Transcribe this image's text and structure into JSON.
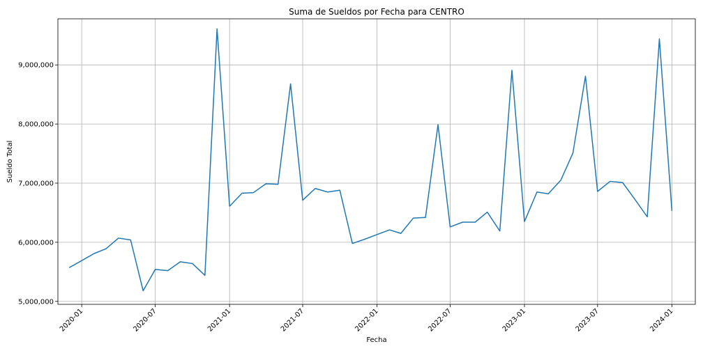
{
  "chart_data": {
    "type": "line",
    "title": "Suma de Sueldos por Fecha para CENTRO",
    "xlabel": "Fecha",
    "ylabel": "Sueldo Total",
    "ylim": [
      4950000,
      9780000
    ],
    "xlim": [
      "2019-11-03",
      "2024-02-28"
    ],
    "grid": true,
    "x_ticks": [
      "2020-01",
      "2020-07",
      "2021-01",
      "2021-07",
      "2022-01",
      "2022-07",
      "2023-01",
      "2023-07",
      "2024-01"
    ],
    "y_ticks": [
      "5,000,000",
      "6,000,000",
      "7,000,000",
      "8,000,000",
      "9,000,000"
    ],
    "y_tick_values": [
      5000000,
      6000000,
      7000000,
      8000000,
      9000000
    ],
    "series": [
      {
        "color": "#1f77b4",
        "x": [
          "2019-12-01",
          "2020-01-01",
          "2020-02-01",
          "2020-03-01",
          "2020-04-01",
          "2020-05-01",
          "2020-06-01",
          "2020-07-01",
          "2020-08-01",
          "2020-09-01",
          "2020-10-01",
          "2020-11-01",
          "2020-12-01",
          "2021-01-01",
          "2021-02-01",
          "2021-03-01",
          "2021-04-01",
          "2021-05-01",
          "2021-06-01",
          "2021-07-01",
          "2021-08-01",
          "2021-09-01",
          "2021-10-01",
          "2021-11-01",
          "2021-12-01",
          "2022-01-01",
          "2022-02-01",
          "2022-03-01",
          "2022-04-01",
          "2022-05-01",
          "2022-06-01",
          "2022-07-01",
          "2022-08-01",
          "2022-09-01",
          "2022-10-01",
          "2022-11-01",
          "2022-12-01",
          "2023-01-01",
          "2023-02-01",
          "2023-03-01",
          "2023-04-01",
          "2023-05-01",
          "2023-06-01",
          "2023-07-01",
          "2023-08-01",
          "2023-09-01",
          "2023-10-01",
          "2023-11-01",
          "2023-12-01",
          "2024-01-01"
        ],
        "y": [
          5570000,
          5690000,
          5810000,
          5890000,
          6070000,
          6040000,
          5180000,
          5540000,
          5520000,
          5670000,
          5640000,
          5440000,
          9610000,
          6610000,
          6830000,
          6840000,
          6990000,
          6980000,
          8680000,
          6710000,
          6910000,
          6850000,
          6880000,
          5980000,
          6050000,
          6130000,
          6210000,
          6150000,
          6410000,
          6420000,
          7990000,
          6260000,
          6340000,
          6340000,
          6510000,
          6190000,
          8910000,
          6350000,
          6850000,
          6820000,
          7050000,
          7510000,
          8810000,
          6860000,
          7030000,
          7010000,
          6730000,
          6430000,
          9440000,
          6530000
        ]
      }
    ]
  }
}
